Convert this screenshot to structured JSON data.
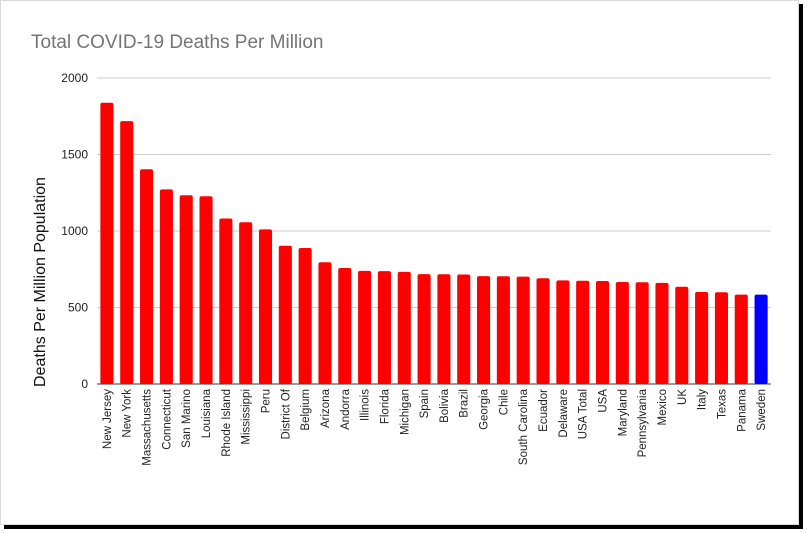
{
  "chart_data": {
    "type": "bar",
    "title": "Total COVID-19 Deaths Per Million",
    "xlabel": "",
    "ylabel": "Deaths Per Million Population",
    "ylim": [
      0,
      2000
    ],
    "yticks": [
      0,
      500,
      1000,
      1500,
      2000
    ],
    "grid": true,
    "legend": "none",
    "colors": {
      "default": "#ff0000",
      "highlight": "#0000ff"
    },
    "highlight_category": "Sweden",
    "categories": [
      "New Jersey",
      "New York",
      "Massachusetts",
      "Connecticut",
      "San Marino",
      "Louisiana",
      "Rhode Island",
      "Mississippi",
      "Peru",
      "District Of",
      "Belgium",
      "Arizona",
      "Andorra",
      "Illinois",
      "Florida",
      "Michigan",
      "Spain",
      "Bolivia",
      "Brazil",
      "Georgia",
      "Chile",
      "South Carolina",
      "Ecuador",
      "Delaware",
      "USA Total",
      "USA",
      "Maryland",
      "Pennsylvania",
      "Mexico",
      "UK",
      "Italy",
      "Texas",
      "Panama",
      "Sweden"
    ],
    "values": [
      1838,
      1718,
      1404,
      1272,
      1234,
      1227,
      1082,
      1057,
      1011,
      904,
      889,
      796,
      758,
      739,
      738,
      733,
      718,
      717,
      716,
      705,
      704,
      702,
      691,
      677,
      675,
      673,
      667,
      665,
      661,
      636,
      601,
      600,
      584,
      584
    ]
  }
}
